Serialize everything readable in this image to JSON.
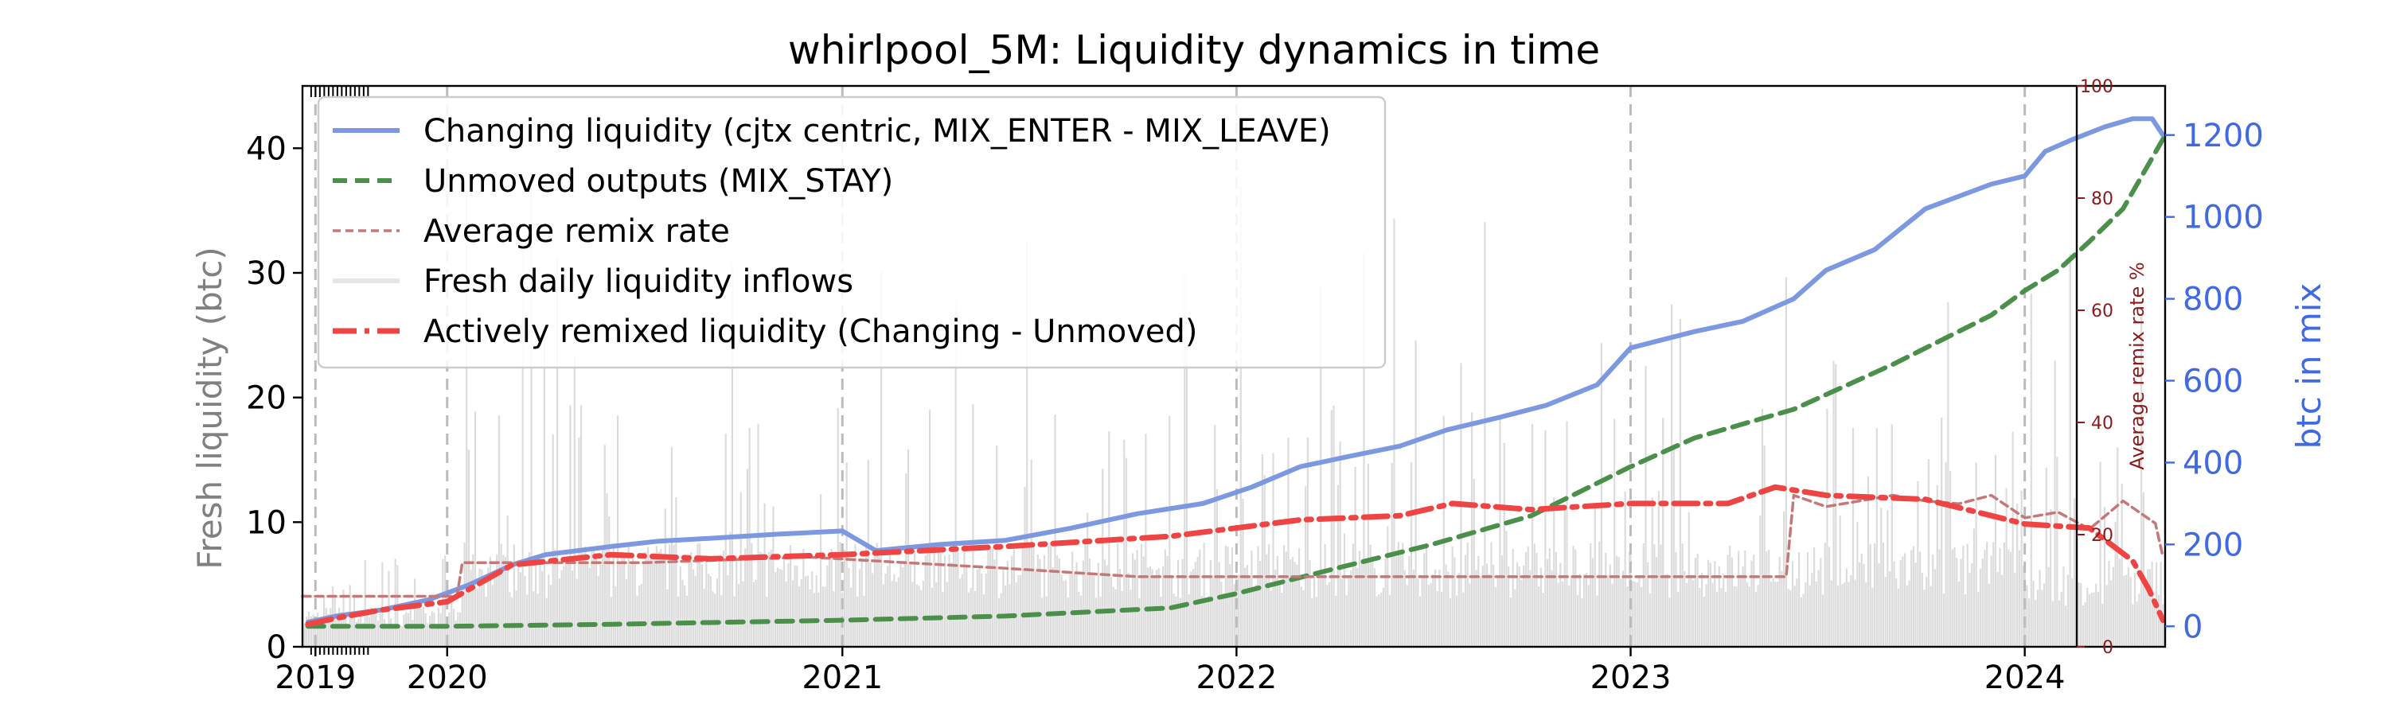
{
  "chart_data": {
    "type": "line",
    "title": "whirlpool_5M: Liquidity dynamics in time",
    "x_axis": {
      "type": "date",
      "range": [
        "2019-08-20",
        "2024-05-10"
      ],
      "tick_labels": [
        {
          "date": "2019-09-01",
          "label": "2019"
        },
        {
          "date": "2020-01-01",
          "label": "2020"
        },
        {
          "date": "2021-01-01",
          "label": "2021"
        },
        {
          "date": "2022-01-01",
          "label": "2022"
        },
        {
          "date": "2023-01-01",
          "label": "2023"
        },
        {
          "date": "2024-01-01",
          "label": "2024"
        }
      ],
      "dashed_gridlines": [
        "2019-09-01",
        "2020-01-01",
        "2021-01-01",
        "2022-01-01",
        "2023-01-01",
        "2024-01-01"
      ]
    },
    "y_left": {
      "label": "Fresh liquidity (btc)",
      "range": [
        0,
        45
      ],
      "ticks": [
        0,
        10,
        20,
        30,
        40
      ],
      "label_color": "#808080"
    },
    "y_right_remix": {
      "label": "Average remix rate %",
      "range": [
        0,
        100
      ],
      "ticks": [
        0,
        20,
        40,
        60,
        80,
        100
      ],
      "color": "#8b1a1a"
    },
    "y_right_btc": {
      "label": "btc in mix",
      "range": [
        -50,
        1320
      ],
      "ticks": [
        0,
        200,
        400,
        600,
        800,
        1000,
        1200
      ],
      "color": "#4169e1"
    },
    "legend": {
      "placement": "top-left",
      "entries": [
        {
          "label": "Changing liquidity (cjtx centric, MIX_ENTER - MIX_LEAVE)",
          "color": "#7b98e0",
          "style": "solid"
        },
        {
          "label": "Unmoved outputs (MIX_STAY)",
          "color": "#2e7d32",
          "style": "dashed"
        },
        {
          "label": "Average remix rate",
          "color": "#c47878",
          "style": "dashed-thin"
        },
        {
          "label": "Fresh daily liquidity inflows",
          "color": "#dddddd",
          "style": "solid-gray"
        },
        {
          "label": "Actively remixed liquidity (Changing - Unmoved)",
          "color": "#ee3333",
          "style": "dashdot"
        }
      ]
    },
    "series": [
      {
        "name": "Changing liquidity (cjtx centric, MIX_ENTER - MIX_LEAVE)",
        "axis": "btc",
        "x": [
          "2019-08-25",
          "2019-09-20",
          "2019-11-01",
          "2019-12-15",
          "2020-01-20",
          "2020-03-01",
          "2020-04-01",
          "2020-06-01",
          "2020-07-15",
          "2020-09-01",
          "2020-11-01",
          "2021-01-01",
          "2021-02-01",
          "2021-04-01",
          "2021-06-01",
          "2021-08-01",
          "2021-10-01",
          "2021-12-01",
          "2022-01-15",
          "2022-03-01",
          "2022-04-15",
          "2022-06-01",
          "2022-07-15",
          "2022-09-01",
          "2022-10-15",
          "2022-12-01",
          "2023-01-01",
          "2023-03-01",
          "2023-04-15",
          "2023-06-01",
          "2023-07-01",
          "2023-08-15",
          "2023-10-01",
          "2023-12-01",
          "2024-01-01",
          "2024-01-20",
          "2024-02-15",
          "2024-03-15",
          "2024-04-10",
          "2024-04-28",
          "2024-05-08"
        ],
        "y": [
          10,
          25,
          40,
          65,
          100,
          150,
          175,
          195,
          208,
          215,
          225,
          233,
          185,
          200,
          210,
          240,
          275,
          300,
          340,
          390,
          415,
          440,
          480,
          510,
          540,
          590,
          680,
          720,
          745,
          800,
          870,
          920,
          1020,
          1080,
          1100,
          1160,
          1190,
          1220,
          1240,
          1240,
          1200
        ]
      },
      {
        "name": "Unmoved outputs (MIX_STAY)",
        "axis": "btc",
        "x": [
          "2019-08-25",
          "2020-01-01",
          "2020-06-01",
          "2021-01-01",
          "2021-06-01",
          "2021-11-01",
          "2022-01-01",
          "2022-04-01",
          "2022-07-01",
          "2022-10-01",
          "2023-01-01",
          "2023-03-01",
          "2023-06-01",
          "2023-09-01",
          "2023-12-01",
          "2024-01-01",
          "2024-02-01",
          "2024-03-01",
          "2024-04-01",
          "2024-05-08"
        ],
        "y": [
          0,
          0,
          5,
          15,
          25,
          45,
          80,
          140,
          200,
          270,
          390,
          460,
          530,
          640,
          760,
          820,
          870,
          940,
          1020,
          1190
        ]
      },
      {
        "name": "Average remix rate",
        "axis": "remix",
        "x": [
          "2019-08-20",
          "2019-09-05",
          "2019-09-06",
          "2020-01-10",
          "2020-01-15",
          "2020-07-01",
          "2020-12-01",
          "2021-03-01",
          "2021-06-01",
          "2021-10-01",
          "2022-03-01",
          "2022-09-01",
          "2023-01-01",
          "2023-04-01",
          "2023-05-25",
          "2023-06-01",
          "2023-07-01",
          "2023-09-01",
          "2023-10-01",
          "2023-11-01",
          "2023-12-01",
          "2024-01-01",
          "2024-02-01",
          "2024-03-01",
          "2024-04-01",
          "2024-05-01",
          "2024-05-08"
        ],
        "y": [
          9,
          9,
          9,
          9,
          15,
          15,
          16,
          15,
          14,
          12.5,
          12.5,
          12.5,
          12.5,
          12.5,
          12.5,
          27,
          25,
          27,
          26,
          25.5,
          27,
          23,
          24,
          21,
          26,
          22,
          16
        ]
      },
      {
        "name": "Actively remixed liquidity (Changing - Unmoved)",
        "axis": "btc",
        "x": [
          "2019-08-25",
          "2019-09-20",
          "2019-11-01",
          "2020-01-01",
          "2020-03-01",
          "2020-06-01",
          "2020-09-01",
          "2021-01-01",
          "2021-06-01",
          "2021-11-01",
          "2022-03-01",
          "2022-06-01",
          "2022-07-20",
          "2022-10-01",
          "2023-01-01",
          "2023-04-01",
          "2023-05-15",
          "2023-07-01",
          "2023-10-01",
          "2024-01-01",
          "2024-03-01",
          "2024-04-10",
          "2024-04-25",
          "2024-05-08"
        ],
        "y": [
          5,
          20,
          40,
          60,
          150,
          175,
          165,
          175,
          195,
          220,
          260,
          270,
          300,
          285,
          300,
          300,
          340,
          320,
          310,
          250,
          240,
          160,
          90,
          15
        ]
      }
    ],
    "inflow_bars": {
      "name": "Fresh daily liquidity inflows",
      "axis": "fresh",
      "periods": [
        {
          "from": "2019-08-20",
          "to": "2020-01-15",
          "typical": 2.5,
          "peak": 8
        },
        {
          "from": "2020-01-15",
          "to": "2021-03-01",
          "typical": 6.5,
          "peak": 40
        },
        {
          "from": "2021-03-01",
          "to": "2022-01-01",
          "typical": 6.5,
          "peak": 34
        },
        {
          "from": "2022-01-01",
          "to": "2023-01-01",
          "typical": 6.5,
          "peak": 38
        },
        {
          "from": "2023-01-01",
          "to": "2024-01-01",
          "typical": 6.5,
          "peak": 30
        },
        {
          "from": "2024-01-01",
          "to": "2024-05-10",
          "typical": 5.5,
          "peak": 40
        }
      ]
    }
  }
}
